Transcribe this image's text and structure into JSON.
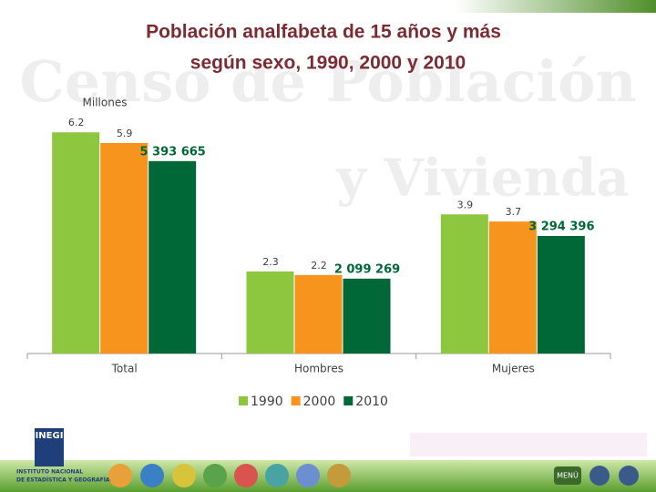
{
  "chart_data": {
    "type": "bar",
    "title": [
      "Población analfabeta de 15 años y más",
      "según sexo, 1990, 2000 y 2010"
    ],
    "y_label": "Millones",
    "categories": [
      "Total",
      "Hombres",
      "Mujeres"
    ],
    "series": [
      {
        "name": "1990",
        "color": "#8dc63f",
        "values": [
          6.2,
          2.3,
          3.9
        ]
      },
      {
        "name": "2000",
        "color": "#f7941d",
        "values": [
          5.9,
          2.2,
          3.7
        ]
      },
      {
        "name": "2010",
        "color": "#006837",
        "values": [
          5.393665,
          2.099269,
          3.294396
        ],
        "value_labels": [
          "5 393 665",
          "2 099 269",
          "3 294 396"
        ]
      }
    ],
    "ylim": [
      0,
      7.1
    ],
    "legend": "bottom"
  },
  "watermark": [
    "Censo de Población",
    "y Vivienda"
  ],
  "footer": {
    "logo": "INEGI",
    "institute": [
      "INSTITUTO NACIONAL",
      "DE ESTADÍSTICA Y GEOGRAFÍA"
    ],
    "menu": "MENÚ"
  }
}
